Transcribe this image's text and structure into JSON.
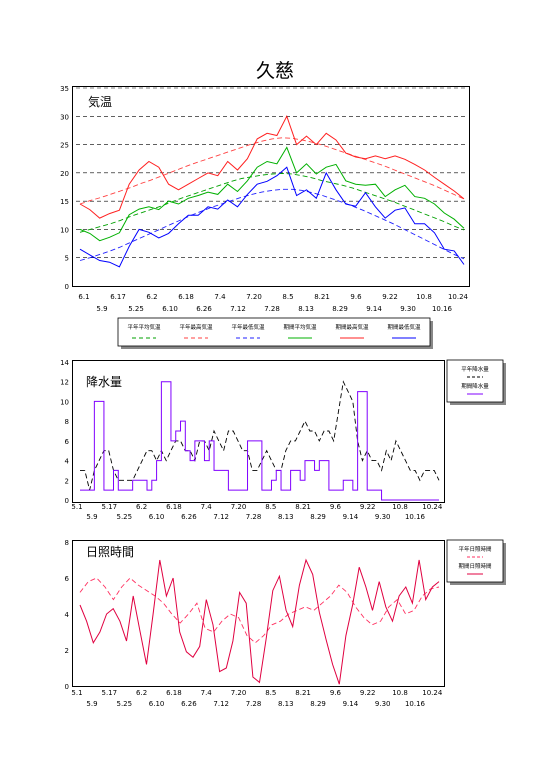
{
  "page": {
    "title": "久慈"
  },
  "chart_data": [
    {
      "type": "line",
      "label": "気温",
      "ylim": [
        0,
        35
      ],
      "yticks": [
        0,
        5,
        10,
        15,
        20,
        25,
        30,
        35
      ],
      "grid": "horizontal-dashed",
      "xticks_top": [
        "6.1",
        "6.17",
        "6.2",
        "6.18",
        "7.4",
        "7.20",
        "8.5",
        "8.21",
        "9.6",
        "9.22",
        "10.8",
        "10.24"
      ],
      "xticks_bottom": [
        "5.9",
        "5.25",
        "6.10",
        "6.26",
        "7.12",
        "7.28",
        "8.13",
        "8.29",
        "9.14",
        "9.30",
        "10.16"
      ],
      "legend_position": "bottom",
      "series": [
        {
          "name": "平年平均気温",
          "color": "#00a000",
          "dash": true,
          "values": [
            9.5,
            10,
            10.5,
            11,
            11.6,
            12.3,
            12.9,
            13.5,
            14.1,
            14.8,
            15.5,
            16.1,
            16.7,
            17.3,
            17.9,
            18.5,
            19,
            19.3,
            19.6,
            19.8,
            19.9,
            19.8,
            19.5,
            19.1,
            18.6,
            18.2,
            17.8,
            17.3,
            16.7,
            16.1,
            15.5,
            14.9,
            14.2,
            13.5,
            12.8,
            12.1,
            11.4,
            10.6,
            9.9
          ]
        },
        {
          "name": "平年最高気温",
          "color": "#ff4040",
          "dash": true,
          "values": [
            14.5,
            15.1,
            15.6,
            16.2,
            16.8,
            17.4,
            18.1,
            18.7,
            19.4,
            20.1,
            20.8,
            21.5,
            22.1,
            22.7,
            23.3,
            23.9,
            24.5,
            25.1,
            25.6,
            26,
            26.2,
            26.1,
            25.8,
            25.4,
            24.9,
            24.3,
            23.7,
            23.1,
            22.5,
            21.9,
            21.3,
            20.6,
            19.9,
            19.2,
            18.5,
            17.8,
            17,
            16.2,
            15.4
          ]
        },
        {
          "name": "平年最低気温",
          "color": "#2020ff",
          "dash": true,
          "values": [
            4.5,
            5,
            5.6,
            6.2,
            6.9,
            7.7,
            8.5,
            9.3,
            10.1,
            10.9,
            11.7,
            12.5,
            13.2,
            13.9,
            14.5,
            15.1,
            15.7,
            16.2,
            16.6,
            16.9,
            17.1,
            17.1,
            16.9,
            16.5,
            16,
            15.4,
            14.8,
            14.1,
            13.4,
            12.6,
            11.8,
            11,
            10.1,
            9.2,
            8.3,
            7.4,
            6.5,
            5.6,
            4.8
          ]
        },
        {
          "name": "期間平均気温",
          "color": "#00b000",
          "dash": false,
          "values": [
            10,
            9.3,
            8,
            8.6,
            9.4,
            12.6,
            13.6,
            14,
            13.5,
            15,
            14.5,
            15.5,
            16,
            16.6,
            16.2,
            18,
            16.7,
            18.6,
            21,
            22,
            21.6,
            24.5,
            20,
            21.6,
            19.8,
            21,
            21.5,
            18.6,
            18,
            17.8,
            18,
            15.8,
            17,
            17.8,
            15.8,
            15.5,
            14.5,
            12.9,
            11.8,
            10.2
          ]
        },
        {
          "name": "期間最高気温",
          "color": "#ff2020",
          "dash": false,
          "values": [
            14.5,
            13.5,
            12,
            12.8,
            13.4,
            18,
            20.5,
            22,
            21,
            18,
            17,
            18,
            19,
            20,
            19.5,
            22,
            20.5,
            22.5,
            26,
            27,
            26.6,
            30,
            25,
            26.5,
            25,
            27,
            25.8,
            23.5,
            22.8,
            22.5,
            23,
            22.5,
            23,
            22.4,
            21.5,
            20.5,
            19.2,
            18,
            16.8,
            15.4
          ]
        },
        {
          "name": "期間最低気温",
          "color": "#0000ff",
          "dash": false,
          "values": [
            6.5,
            5.5,
            4.5,
            4.2,
            3.4,
            7,
            10,
            9.5,
            8.5,
            9.3,
            11,
            12.5,
            12.5,
            14,
            13.6,
            15.2,
            14,
            16.2,
            18,
            18.5,
            19.5,
            21,
            16,
            17,
            15.5,
            20,
            17,
            14.5,
            14.1,
            16.5,
            14,
            12,
            13.4,
            13.8,
            11,
            11,
            9.4,
            6.5,
            6.2,
            3.8
          ]
        }
      ]
    },
    {
      "type": "line",
      "label": "降水量",
      "ylim": [
        0,
        14
      ],
      "yticks": [
        0,
        2,
        4,
        6,
        8,
        10,
        12,
        14
      ],
      "grid": "none",
      "xticks_top": [
        "5.1",
        "5.17",
        "6.2",
        "6.18",
        "7.4",
        "7.20",
        "8.5",
        "8.21",
        "9.6",
        "9.22",
        "10.8",
        "10.24"
      ],
      "xticks_bottom": [
        "5.9",
        "5.25",
        "6.10",
        "6.26",
        "7.12",
        "7.28",
        "8.13",
        "8.29",
        "9.14",
        "9.30",
        "10.16"
      ],
      "legend_position": "right",
      "series": [
        {
          "name": "平年降水量",
          "color": "#000000",
          "dash": true,
          "values": [
            3,
            3,
            1,
            3,
            4,
            5,
            5,
            3,
            2,
            2,
            2,
            2,
            3,
            4,
            5,
            5,
            4,
            5,
            4,
            5,
            6,
            6,
            5,
            5,
            4,
            6,
            6,
            5,
            7,
            6,
            5,
            7,
            7,
            6,
            5,
            5,
            3,
            3,
            4,
            5,
            4,
            3,
            3,
            5,
            6,
            6,
            7,
            8,
            7,
            7,
            6,
            7,
            7,
            6,
            9,
            12,
            11,
            10,
            6,
            4,
            5,
            4,
            4,
            3,
            5,
            4,
            6,
            5,
            4,
            3,
            3,
            2,
            3,
            3,
            3,
            2
          ]
        },
        {
          "name": "期間降水量",
          "color": "#8000ff",
          "dash": false,
          "values": [
            1,
            1,
            1,
            10,
            10,
            1,
            1,
            3,
            1,
            1,
            1,
            2,
            2,
            2,
            1,
            2,
            4,
            12,
            12,
            6,
            7,
            8,
            5,
            4,
            6,
            6,
            4,
            6,
            3,
            3,
            3,
            1,
            1,
            1,
            1,
            6,
            6,
            6,
            1,
            1,
            2,
            3,
            1,
            1,
            3,
            3,
            2,
            4,
            4,
            3,
            4,
            4,
            1,
            1,
            1,
            2,
            2,
            1,
            11,
            11,
            1,
            1,
            1,
            0,
            0,
            0,
            0,
            0,
            0,
            0,
            0,
            0,
            0,
            0,
            0,
            0
          ]
        }
      ]
    },
    {
      "type": "line",
      "label": "日照時間",
      "ylim": [
        0,
        8
      ],
      "yticks": [
        0,
        2,
        4,
        6,
        8
      ],
      "grid": "none",
      "xticks_top": [
        "5.1",
        "5.17",
        "6.2",
        "6.18",
        "7.4",
        "7.20",
        "8.5",
        "8.21",
        "9.6",
        "9.22",
        "10.8",
        "10.24"
      ],
      "xticks_bottom": [
        "5.9",
        "5.25",
        "6.10",
        "6.26",
        "7.12",
        "7.28",
        "8.13",
        "8.29",
        "9.14",
        "9.30",
        "10.16"
      ],
      "legend_position": "right",
      "series": [
        {
          "name": "平年日照時間",
          "color": "#ff3060",
          "dash": true,
          "values": [
            5.2,
            5.8,
            6,
            5.5,
            4.8,
            5.5,
            6,
            5.6,
            5.3,
            5,
            4.6,
            4,
            3.5,
            4,
            4.6,
            3.2,
            3,
            3.6,
            4,
            3.8,
            2.8,
            2.4,
            2.8,
            3.4,
            3.6,
            4,
            4.2,
            4.4,
            4.2,
            4.6,
            5,
            5.6,
            5.2,
            4.4,
            3.8,
            3.4,
            3.6,
            4.4,
            4.8,
            4,
            4.2,
            5,
            5.4,
            5.5
          ]
        },
        {
          "name": "期間日照時間",
          "color": "#e00040",
          "dash": false,
          "values": [
            4.5,
            3.6,
            2.4,
            3,
            4,
            4.3,
            3.6,
            2.5,
            5,
            3.1,
            1.2,
            4,
            7,
            5,
            6,
            3,
            1.9,
            1.6,
            2.2,
            4.8,
            3.4,
            0.8,
            1,
            2.5,
            5.2,
            4.6,
            0.5,
            0.2,
            2.6,
            5.3,
            6.1,
            4.2,
            3.3,
            5.6,
            7,
            6.2,
            4.1,
            2.6,
            1.2,
            0.1,
            2.8,
            4.5,
            6.6,
            5.5,
            4.2,
            5.8,
            4.4,
            3.6,
            5,
            5.5,
            4.6,
            7,
            4.8,
            5.5,
            5.8
          ]
        }
      ]
    }
  ]
}
